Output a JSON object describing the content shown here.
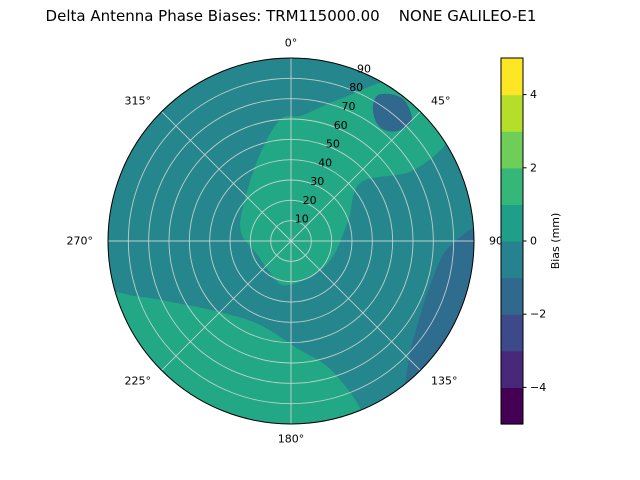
{
  "figure": {
    "background": "#ffffff"
  },
  "chart_data": {
    "type": "heatmap",
    "subtype": "polar-contourf",
    "title": "Delta Antenna Phase Biases: TRM115000.00    NONE GALILEO-E1",
    "angular_axis": {
      "zero_location": "top",
      "direction": "clockwise",
      "tick_angles_deg": [
        0,
        45,
        90,
        135,
        180,
        225,
        270,
        315
      ],
      "tick_labels": [
        "0°",
        "45°",
        "90°",
        "135°",
        "180°",
        "225°",
        "270°",
        "315°"
      ]
    },
    "radial_axis": {
      "min": 0,
      "max": 90,
      "ticks": [
        10,
        20,
        30,
        40,
        50,
        60,
        70,
        80,
        90
      ],
      "tick_labels": [
        "10",
        "20",
        "30",
        "40",
        "50",
        "60",
        "70",
        "80",
        "90"
      ],
      "label_angle_deg": 22.5
    },
    "colorbar": {
      "label": "Bias (mm)",
      "vmin": -5,
      "vmax": 5,
      "ticks": [
        -4,
        -2,
        0,
        2,
        4
      ],
      "tick_labels": [
        "−4",
        "−2",
        "0",
        "2",
        "4"
      ],
      "colormap": "viridis",
      "band_colors": [
        "#440154",
        "#482878",
        "#3e4989",
        "#31688e",
        "#26828e",
        "#1f9e89",
        "#35b779",
        "#6ece58",
        "#b5de2b",
        "#fde725"
      ]
    },
    "field": {
      "units": "mm",
      "base_value_mm": 0.5,
      "base_color": "#25878d",
      "regions": [
        {
          "name": "center-upper-right-lobe",
          "value_mm": 1.5,
          "color": "#22a884",
          "points": [
            [
              250,
              18
            ],
            [
              280,
              25
            ],
            [
              310,
              30
            ],
            [
              340,
              45
            ],
            [
              355,
              60
            ],
            [
              5,
              62
            ],
            [
              20,
              75
            ],
            [
              35,
              96
            ],
            [
              55,
              96
            ],
            [
              60,
              70
            ],
            [
              50,
              45
            ],
            [
              70,
              30
            ],
            [
              110,
              22
            ],
            [
              150,
              20
            ],
            [
              190,
              22
            ],
            [
              220,
              18
            ]
          ]
        },
        {
          "name": "bottom-lower-left-lobe",
          "value_mm": 1.5,
          "color": "#22a884",
          "points": [
            [
              158,
              96
            ],
            [
              162,
              68
            ],
            [
              178,
              52
            ],
            [
              200,
              44
            ],
            [
              222,
              48
            ],
            [
              240,
              62
            ],
            [
              250,
              80
            ],
            [
              253,
              96
            ],
            [
              230,
              101
            ],
            [
              195,
              103
            ],
            [
              170,
              101
            ]
          ]
        },
        {
          "name": "right-rim-band",
          "value_mm": -0.5,
          "color": "#2f6d8e",
          "points": [
            [
              86,
              96
            ],
            [
              92,
              78
            ],
            [
              105,
              72
            ],
            [
              122,
              74
            ],
            [
              135,
              82
            ],
            [
              143,
              96
            ],
            [
              128,
              101
            ],
            [
              105,
              103
            ]
          ]
        },
        {
          "name": "upper-right-spot",
          "value_mm": -0.5,
          "color": "#31688e",
          "points": [
            [
              32,
              76
            ],
            [
              38,
              71
            ],
            [
              44,
              75
            ],
            [
              45,
              84
            ],
            [
              38,
              89
            ],
            [
              31,
              84
            ]
          ]
        }
      ]
    }
  }
}
